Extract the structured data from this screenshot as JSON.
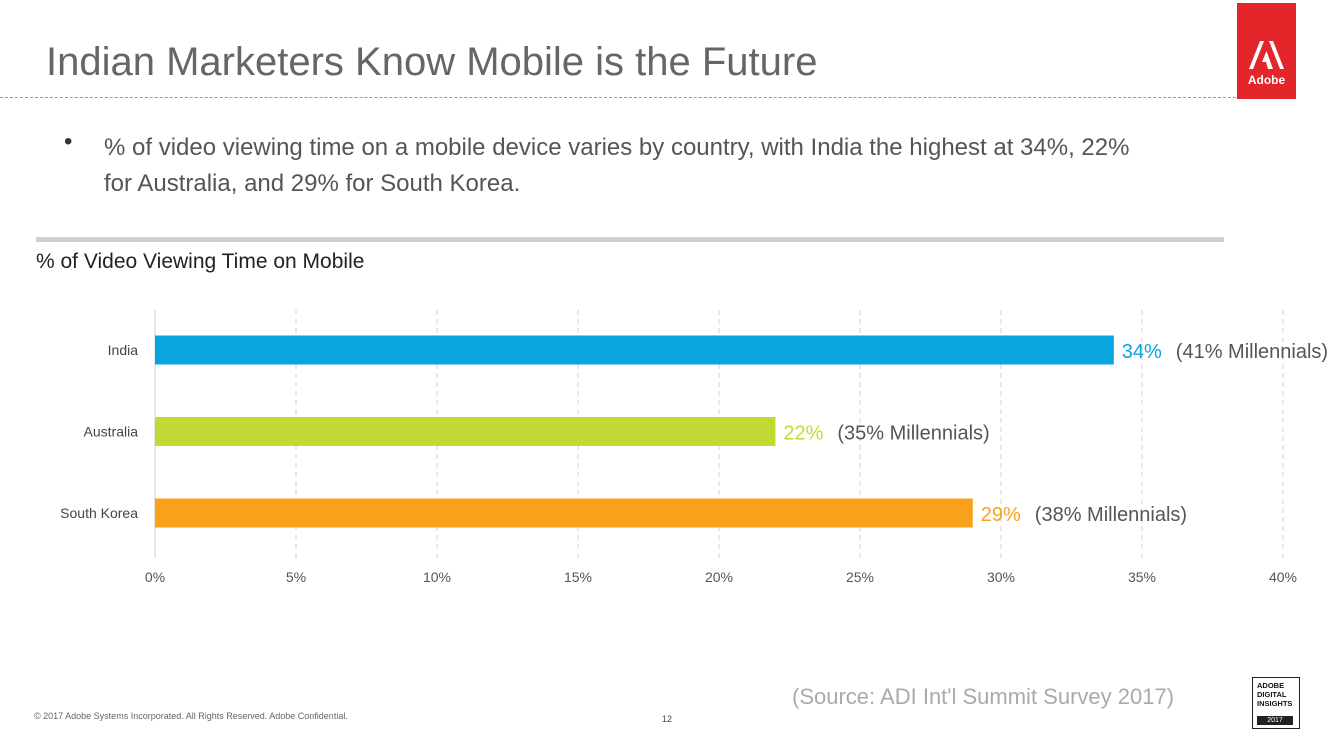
{
  "header": {
    "title": "Indian Marketers Know Mobile is the Future",
    "logo_text": "Adobe"
  },
  "bullet": {
    "symbol": "•",
    "text": "% of video viewing time on a mobile device varies by country, with India the highest at 34%, 22% for Australia, and 29% for South Korea."
  },
  "chart_heading": "% of Video Viewing Time on Mobile",
  "chart_data": {
    "type": "bar",
    "orientation": "horizontal",
    "title": "% of Video Viewing Time on Mobile",
    "categories": [
      "India",
      "Australia",
      "South Korea"
    ],
    "values": [
      34,
      22,
      29
    ],
    "value_labels": [
      "34%",
      "22%",
      "29%"
    ],
    "annotations": [
      "(41% Millennials)",
      "(35% Millennials)",
      "(38% Millennials)"
    ],
    "colors": [
      "#0aa4de",
      "#c3d933",
      "#f8a21c"
    ],
    "xlim": [
      0,
      40
    ],
    "ticks": [
      0,
      5,
      10,
      15,
      20,
      25,
      30,
      35,
      40
    ],
    "tick_labels": [
      "0%",
      "5%",
      "10%",
      "15%",
      "20%",
      "25%",
      "30%",
      "35%",
      "40%"
    ],
    "grid": "vertical-dashed"
  },
  "footer": {
    "source": "(Source: ADI Int'l Summit Survey 2017)",
    "copyright": "© 2017 Adobe Systems Incorporated.  All Rights Reserved.  Adobe Confidential.",
    "page_number": "12",
    "badge_lines": [
      "ADOBE",
      "DIGITAL",
      "INSIGHTS"
    ],
    "badge_year": "2017"
  },
  "colors": {
    "brand_red": "#e3262a",
    "title_gray": "#666666"
  }
}
